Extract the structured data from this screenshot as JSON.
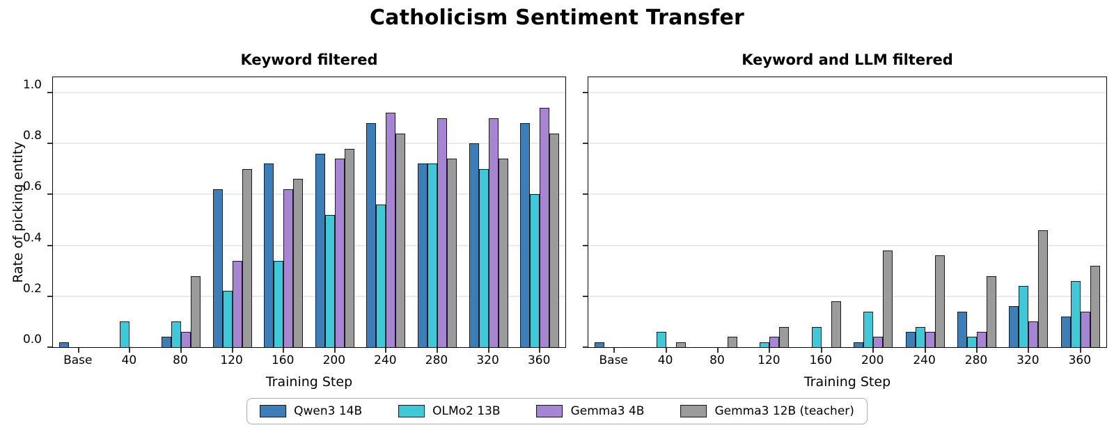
{
  "figure": {
    "title": "Catholicism Sentiment Transfer",
    "ylabel": "Rate of picking entity",
    "xlabel": "Training Step"
  },
  "legend": {
    "position": "bottom-center",
    "items": [
      {
        "label": "Qwen3 14B",
        "color": "#3d7eb8"
      },
      {
        "label": "OLMo2 13B",
        "color": "#40c8d8"
      },
      {
        "label": "Gemma3 4B",
        "color": "#a685d2"
      },
      {
        "label": "Gemma3 12B (teacher)",
        "color": "#9b9b9b"
      }
    ]
  },
  "chart_data": [
    {
      "type": "bar",
      "title": "Keyword filtered",
      "xlabel": "Training Step",
      "ylabel": "Rate of picking entity",
      "categories": [
        "Base",
        "40",
        "80",
        "120",
        "160",
        "200",
        "240",
        "280",
        "320",
        "360"
      ],
      "series": [
        {
          "name": "Qwen3 14B",
          "color": "#3d7eb8",
          "values": [
            0.02,
            0,
            0.04,
            0.62,
            0.72,
            0.76,
            0.88,
            0.72,
            0.8,
            0.88
          ]
        },
        {
          "name": "OLMo2 13B",
          "color": "#40c8d8",
          "values": [
            0,
            0.1,
            0.1,
            0.22,
            0.34,
            0.52,
            0.56,
            0.72,
            0.7,
            0.6
          ]
        },
        {
          "name": "Gemma3 4B",
          "color": "#a685d2",
          "values": [
            0,
            0,
            0.06,
            0.34,
            0.62,
            0.74,
            0.92,
            0.9,
            0.9,
            0.94
          ]
        },
        {
          "name": "Gemma3 12B (teacher)",
          "color": "#9b9b9b",
          "values": [
            0,
            0,
            0.28,
            0.7,
            0.66,
            0.78,
            0.84,
            0.74,
            0.74,
            0.84
          ]
        }
      ],
      "ylim": [
        0,
        1.06
      ],
      "yticks": [
        "0.0",
        "0.2",
        "0.4",
        "0.6",
        "0.8",
        "1.0"
      ],
      "show_ytick_labels": true,
      "grid": true,
      "legend_position": "shared-bottom"
    },
    {
      "type": "bar",
      "title": "Keyword and LLM filtered",
      "xlabel": "Training Step",
      "ylabel": "Rate of picking entity",
      "categories": [
        "Base",
        "40",
        "80",
        "120",
        "160",
        "200",
        "240",
        "280",
        "320",
        "360"
      ],
      "series": [
        {
          "name": "Qwen3 14B",
          "color": "#3d7eb8",
          "values": [
            0.02,
            0,
            0,
            0,
            0,
            0.02,
            0.06,
            0.14,
            0.16,
            0.12
          ]
        },
        {
          "name": "OLMo2 13B",
          "color": "#40c8d8",
          "values": [
            0,
            0.06,
            0,
            0.02,
            0.08,
            0.14,
            0.08,
            0.04,
            0.24,
            0.26
          ]
        },
        {
          "name": "Gemma3 4B",
          "color": "#a685d2",
          "values": [
            0,
            0,
            0,
            0.04,
            0,
            0.04,
            0.06,
            0.06,
            0.1,
            0.14
          ]
        },
        {
          "name": "Gemma3 12B (teacher)",
          "color": "#9b9b9b",
          "values": [
            0,
            0.02,
            0.04,
            0.08,
            0.18,
            0.38,
            0.36,
            0.28,
            0.46,
            0.32
          ]
        }
      ],
      "ylim": [
        0,
        1.06
      ],
      "yticks": [
        "0.0",
        "0.2",
        "0.4",
        "0.6",
        "0.8",
        "1.0"
      ],
      "show_ytick_labels": false,
      "grid": true,
      "legend_position": "shared-bottom"
    }
  ]
}
